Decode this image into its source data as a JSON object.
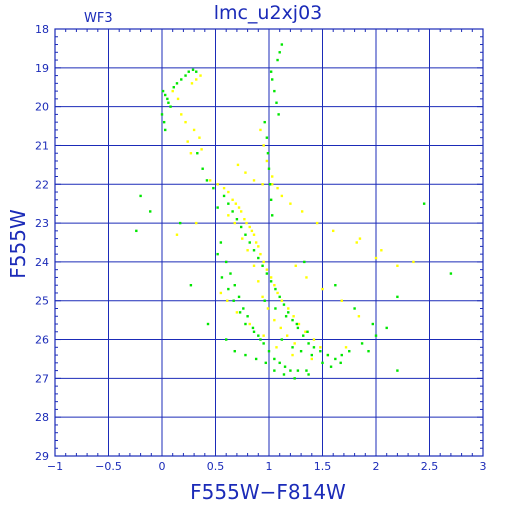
{
  "chart_data": {
    "type": "scatter",
    "title": "lmc_u2xj03",
    "corner_label": "WF3",
    "xlabel": "F555W−F814W",
    "ylabel": "F555W",
    "xlim": [
      -1,
      3
    ],
    "ylim": [
      29,
      18
    ],
    "y_inverted": true,
    "grid": true,
    "x_ticks": [
      -1,
      -0.5,
      0,
      0.5,
      1,
      1.5,
      2,
      2.5,
      3
    ],
    "x_tick_labels": [
      "−1",
      "−0.5",
      "0",
      "0.5",
      "1",
      "1.5",
      "2",
      "2.5",
      "3"
    ],
    "y_ticks": [
      18,
      19,
      20,
      21,
      22,
      23,
      24,
      25,
      26,
      27,
      28,
      29
    ],
    "y_tick_labels": [
      "18",
      "19",
      "20",
      "21",
      "22",
      "23",
      "24",
      "25",
      "26",
      "27",
      "28",
      "29"
    ],
    "series": [
      {
        "color": "#ffff00",
        "points": [
          [
            0.45,
            21.9
          ],
          [
            0.52,
            22.0
          ],
          [
            0.58,
            22.1
          ],
          [
            0.62,
            22.2
          ],
          [
            0.66,
            22.4
          ],
          [
            0.69,
            22.5
          ],
          [
            0.72,
            22.6
          ],
          [
            0.74,
            22.7
          ],
          [
            0.77,
            22.9
          ],
          [
            0.79,
            23.0
          ],
          [
            0.82,
            23.1
          ],
          [
            0.84,
            23.2
          ],
          [
            0.86,
            23.3
          ],
          [
            0.88,
            23.5
          ],
          [
            0.9,
            23.6
          ],
          [
            0.92,
            23.8
          ],
          [
            0.95,
            24.0
          ],
          [
            0.98,
            24.2
          ],
          [
            1.02,
            24.4
          ],
          [
            1.05,
            24.6
          ],
          [
            1.08,
            24.8
          ],
          [
            1.12,
            25.0
          ],
          [
            1.18,
            25.2
          ],
          [
            1.23,
            25.4
          ],
          [
            1.28,
            25.6
          ],
          [
            1.34,
            25.8
          ],
          [
            1.42,
            26.0
          ],
          [
            1.48,
            26.2
          ],
          [
            0.62,
            22.8
          ],
          [
            0.68,
            23.0
          ],
          [
            0.75,
            23.4
          ],
          [
            0.8,
            23.7
          ],
          [
            0.86,
            24.1
          ],
          [
            0.9,
            24.5
          ],
          [
            0.94,
            24.9
          ],
          [
            0.99,
            25.2
          ],
          [
            1.05,
            25.5
          ],
          [
            1.11,
            25.7
          ],
          [
            1.17,
            25.9
          ],
          [
            1.24,
            26.1
          ],
          [
            0.24,
            20.9
          ],
          [
            0.27,
            21.2
          ],
          [
            0.3,
            20.6
          ],
          [
            0.35,
            20.8
          ],
          [
            0.37,
            21.1
          ],
          [
            0.1,
            19.6
          ],
          [
            0.15,
            19.8
          ],
          [
            0.18,
            20.2
          ],
          [
            0.22,
            20.4
          ],
          [
            0.28,
            19.4
          ],
          [
            0.32,
            19.3
          ],
          [
            0.36,
            19.2
          ],
          [
            0.92,
            20.6
          ],
          [
            0.95,
            21.0
          ],
          [
            0.98,
            21.4
          ],
          [
            1.03,
            21.8
          ],
          [
            1.08,
            22.1
          ],
          [
            1.12,
            22.3
          ],
          [
            1.2,
            22.5
          ],
          [
            1.31,
            22.7
          ],
          [
            1.45,
            23.0
          ],
          [
            1.6,
            23.2
          ],
          [
            1.82,
            23.5
          ],
          [
            2.05,
            23.7
          ],
          [
            2.2,
            24.1
          ],
          [
            1.25,
            24.1
          ],
          [
            1.35,
            24.4
          ],
          [
            1.5,
            24.7
          ],
          [
            1.68,
            25.0
          ],
          [
            1.84,
            25.4
          ],
          [
            0.55,
            24.8
          ],
          [
            0.61,
            25.0
          ],
          [
            0.7,
            25.3
          ],
          [
            0.82,
            25.6
          ],
          [
            0.95,
            25.9
          ],
          [
            1.07,
            26.2
          ],
          [
            1.22,
            26.4
          ],
          [
            1.4,
            26.5
          ],
          [
            1.55,
            26.4
          ],
          [
            1.72,
            26.2
          ],
          [
            0.71,
            21.5
          ],
          [
            0.78,
            21.7
          ],
          [
            0.86,
            21.9
          ],
          [
            0.94,
            22.0
          ],
          [
            1.03,
            22.0
          ],
          [
            0.14,
            23.3
          ],
          [
            0.32,
            23.0
          ],
          [
            1.85,
            23.4
          ],
          [
            2.0,
            23.9
          ],
          [
            2.35,
            24.0
          ]
        ]
      },
      {
        "color": "#00e600",
        "points": [
          [
            0.01,
            19.6
          ],
          [
            0.03,
            19.7
          ],
          [
            0.05,
            19.8
          ],
          [
            0.06,
            19.9
          ],
          [
            0.08,
            20.0
          ],
          [
            0.11,
            19.5
          ],
          [
            0.14,
            19.4
          ],
          [
            0.18,
            19.3
          ],
          [
            0.22,
            19.2
          ],
          [
            0.25,
            19.1
          ],
          [
            0.29,
            19.05
          ],
          [
            0.32,
            19.1
          ],
          [
            0.0,
            20.2
          ],
          [
            0.02,
            20.4
          ],
          [
            0.03,
            20.6
          ],
          [
            0.96,
            20.4
          ],
          [
            0.98,
            20.8
          ],
          [
            0.99,
            21.2
          ],
          [
            1.0,
            21.6
          ],
          [
            1.01,
            22.0
          ],
          [
            1.02,
            22.4
          ],
          [
            1.03,
            22.8
          ],
          [
            1.02,
            19.1
          ],
          [
            1.03,
            19.3
          ],
          [
            1.05,
            19.6
          ],
          [
            1.07,
            19.9
          ],
          [
            1.09,
            20.2
          ],
          [
            1.08,
            18.8
          ],
          [
            1.1,
            18.6
          ],
          [
            1.12,
            18.4
          ],
          [
            0.58,
            22.3
          ],
          [
            0.62,
            22.5
          ],
          [
            0.66,
            22.7
          ],
          [
            0.7,
            22.9
          ],
          [
            0.74,
            23.1
          ],
          [
            0.78,
            23.3
          ],
          [
            0.82,
            23.5
          ],
          [
            0.86,
            23.7
          ],
          [
            0.9,
            23.9
          ],
          [
            0.94,
            24.1
          ],
          [
            0.98,
            24.3
          ],
          [
            1.02,
            24.5
          ],
          [
            1.06,
            24.7
          ],
          [
            1.1,
            24.9
          ],
          [
            1.14,
            25.1
          ],
          [
            1.18,
            25.3
          ],
          [
            1.22,
            25.5
          ],
          [
            1.27,
            25.7
          ],
          [
            1.32,
            25.9
          ],
          [
            1.37,
            26.1
          ],
          [
            1.42,
            26.2
          ],
          [
            1.48,
            26.3
          ],
          [
            1.55,
            26.4
          ],
          [
            1.62,
            26.5
          ],
          [
            1.68,
            26.4
          ],
          [
            0.6,
            24.0
          ],
          [
            0.64,
            24.3
          ],
          [
            0.68,
            24.6
          ],
          [
            0.72,
            24.9
          ],
          [
            0.76,
            25.2
          ],
          [
            0.8,
            25.4
          ],
          [
            0.85,
            25.7
          ],
          [
            0.9,
            25.9
          ],
          [
            0.95,
            26.1
          ],
          [
            1.0,
            26.3
          ],
          [
            1.05,
            26.5
          ],
          [
            1.1,
            26.6
          ],
          [
            1.15,
            26.7
          ],
          [
            1.2,
            26.8
          ],
          [
            1.27,
            26.8
          ],
          [
            0.55,
            23.5
          ],
          [
            0.52,
            23.8
          ],
          [
            0.56,
            24.4
          ],
          [
            0.62,
            24.7
          ],
          [
            0.67,
            25.0
          ],
          [
            0.73,
            25.3
          ],
          [
            0.78,
            25.6
          ],
          [
            0.86,
            25.8
          ],
          [
            0.92,
            26.0
          ],
          [
            1.12,
            26.0
          ],
          [
            1.22,
            26.2
          ],
          [
            1.3,
            26.3
          ],
          [
            1.4,
            26.4
          ],
          [
            1.5,
            26.6
          ],
          [
            1.58,
            26.7
          ],
          [
            1.67,
            26.6
          ],
          [
            1.75,
            26.3
          ],
          [
            1.87,
            26.1
          ],
          [
            2.0,
            25.9
          ],
          [
            2.2,
            24.9
          ],
          [
            2.45,
            22.5
          ],
          [
            2.7,
            24.3
          ],
          [
            1.33,
            24.0
          ],
          [
            1.62,
            24.6
          ],
          [
            1.8,
            25.2
          ],
          [
            1.97,
            25.6
          ],
          [
            2.1,
            25.7
          ],
          [
            2.2,
            26.8
          ],
          [
            1.93,
            26.3
          ],
          [
            1.35,
            26.8
          ],
          [
            0.33,
            21.2
          ],
          [
            0.38,
            21.6
          ],
          [
            0.42,
            21.9
          ],
          [
            0.48,
            22.1
          ],
          [
            0.52,
            22.6
          ],
          [
            -0.11,
            22.7
          ],
          [
            -0.2,
            22.3
          ],
          [
            -0.24,
            23.2
          ],
          [
            0.17,
            23.0
          ],
          [
            0.27,
            24.6
          ],
          [
            0.43,
            25.6
          ],
          [
            0.6,
            26.0
          ],
          [
            0.68,
            26.3
          ],
          [
            0.78,
            26.4
          ],
          [
            0.88,
            26.5
          ],
          [
            0.97,
            26.6
          ],
          [
            1.05,
            26.8
          ],
          [
            1.14,
            26.9
          ],
          [
            1.24,
            27.0
          ],
          [
            1.37,
            26.9
          ],
          [
            0.96,
            25.0
          ],
          [
            1.06,
            25.2
          ],
          [
            1.16,
            25.4
          ],
          [
            1.26,
            25.6
          ],
          [
            1.36,
            25.8
          ]
        ]
      }
    ]
  }
}
